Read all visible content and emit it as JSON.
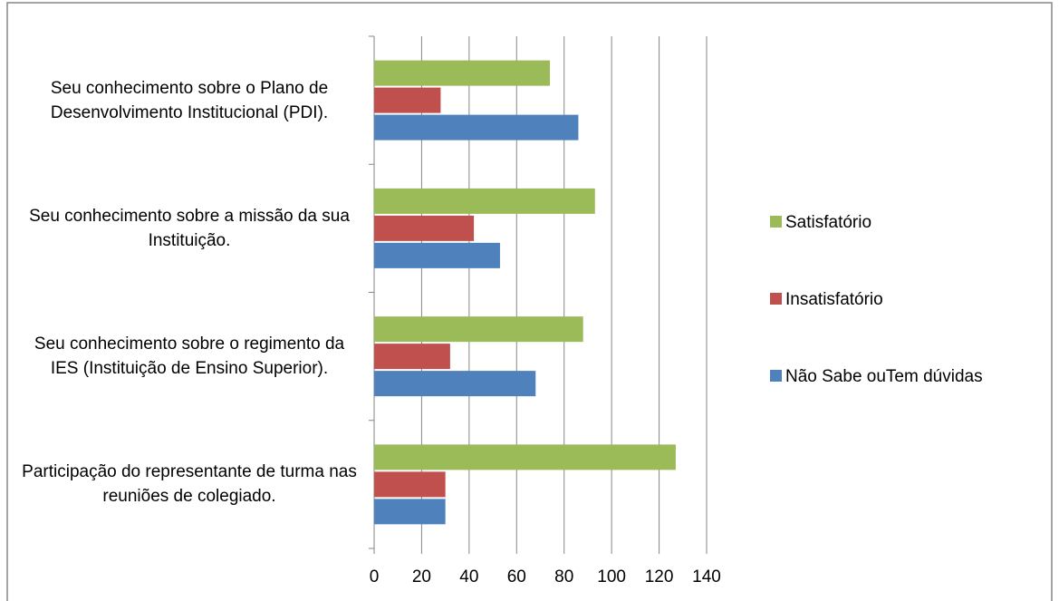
{
  "chart_data": {
    "type": "hbar",
    "categories": [
      "Seu conhecimento sobre o Plano de Desenvolvimento Institucional (PDI).",
      "Seu conhecimento sobre a missão da sua Instituição.",
      "Seu conhecimento sobre o regimento da IES (Instituição de Ensino Superior).",
      "Participação do representante de turma nas reuniões de colegiado."
    ],
    "series": [
      {
        "name": "Satisfatório",
        "color": "#9bbb59",
        "values": [
          74,
          93,
          88,
          127
        ]
      },
      {
        "name": "Insatisfatório",
        "color": "#c0504d",
        "values": [
          28,
          42,
          32,
          30
        ]
      },
      {
        "name": "Não Sabe ouTem dúvidas",
        "color": "#4f81bd",
        "values": [
          86,
          53,
          68,
          30
        ]
      }
    ],
    "xlim": [
      0,
      140
    ],
    "xticks": [
      0,
      20,
      40,
      60,
      80,
      100,
      120,
      140
    ],
    "grid": true,
    "legend": "right"
  }
}
